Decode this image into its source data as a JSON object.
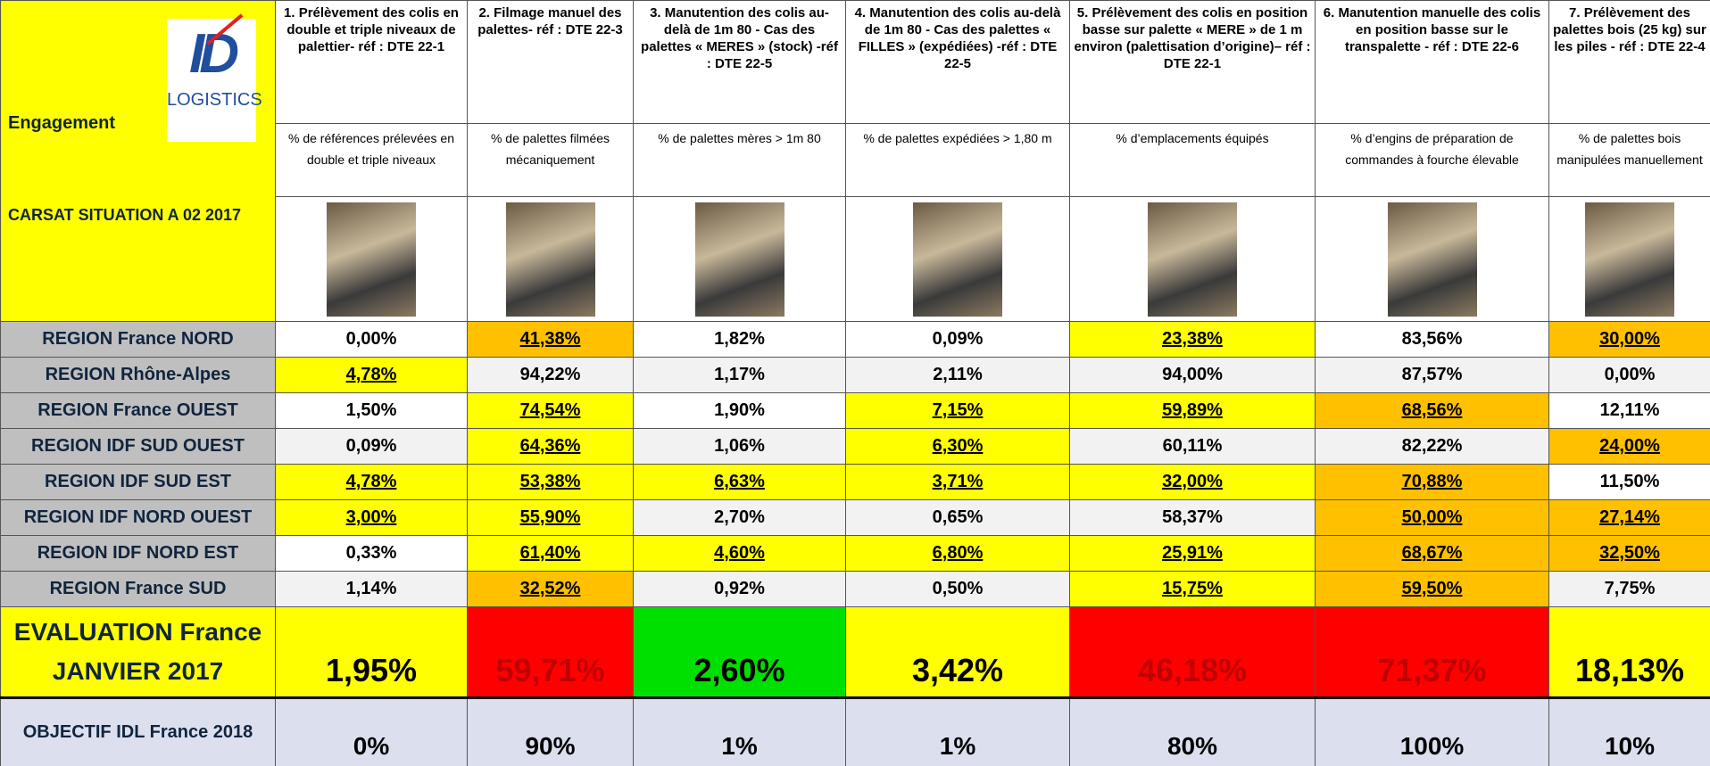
{
  "header": {
    "engagement": "Engagement",
    "logo_mark": "ID",
    "logo_text": "LOGISTICS",
    "situation": "CARSAT  SITUATION A 02 2017"
  },
  "columns": [
    {
      "title": "1. Prélèvement des colis en double et triple niveaux de palettier- réf : DTE 22-1",
      "measure": "% de références prélevées en double et triple niveaux"
    },
    {
      "title": "2. Filmage manuel des palettes- réf : DTE 22-3",
      "measure": "% de palettes filmées mécaniquement"
    },
    {
      "title": "3. Manutention des colis au-delà de 1m 80 - Cas des palettes « MERES » (stock) -réf : DTE 22-5",
      "measure": "% de palettes mères > 1m 80"
    },
    {
      "title": "4. Manutention des colis au-delà de 1m 80 - Cas des palettes « FILLES » (expédiées) -réf : DTE 22-5",
      "measure": "% de palettes expédiées > 1,80 m"
    },
    {
      "title": "5. Prélèvement des colis en position basse sur palette « MERE » de 1 m environ (palettisation d’origine)– réf : DTE 22-1",
      "measure": "% d’emplacements équipés"
    },
    {
      "title": "6. Manutention manuelle des colis en position basse sur le transpalette - réf : DTE 22-6",
      "measure": "% d’engins de préparation de commandes à fourche élevable"
    },
    {
      "title": "7. Prélèvement des palettes bois (25 kg) sur les piles - réf : DTE 22-4",
      "measure": "% de palettes bois manipulées manuellement"
    }
  ],
  "rows": [
    {
      "label": "REGION France NORD",
      "values": [
        "0,00%",
        "41,38%",
        "1,82%",
        "0,09%",
        "23,38%",
        "83,56%",
        "30,00%"
      ],
      "fills": [
        "#ffffff",
        "#ffc000",
        "#ffffff",
        "#ffffff",
        "#ffff00",
        "#ffffff",
        "#ffc000"
      ]
    },
    {
      "label": "REGION Rhône-Alpes",
      "values": [
        "4,78%",
        "94,22%",
        "1,17%",
        "2,11%",
        "94,00%",
        "87,57%",
        "0,00%"
      ],
      "fills": [
        "#ffff00",
        "#f2f2f2",
        "#f2f2f2",
        "#f2f2f2",
        "#f2f2f2",
        "#f2f2f2",
        "#f2f2f2"
      ]
    },
    {
      "label": "REGION France OUEST",
      "values": [
        "1,50%",
        "74,54%",
        "1,90%",
        "7,15%",
        "59,89%",
        "68,56%",
        "12,11%"
      ],
      "fills": [
        "#ffffff",
        "#ffff00",
        "#ffffff",
        "#ffff00",
        "#ffff00",
        "#ffc000",
        "#ffffff"
      ]
    },
    {
      "label": "REGION IDF SUD OUEST",
      "values": [
        "0,09%",
        "64,36%",
        "1,06%",
        "6,30%",
        "60,11%",
        "82,22%",
        "24,00%"
      ],
      "fills": [
        "#f2f2f2",
        "#ffff00",
        "#f2f2f2",
        "#ffff00",
        "#f2f2f2",
        "#f2f2f2",
        "#ffc000"
      ]
    },
    {
      "label": "REGION IDF SUD EST",
      "values": [
        "4,78%",
        "53,38%",
        "6,63%",
        "3,71%",
        "32,00%",
        "70,88%",
        "11,50%"
      ],
      "fills": [
        "#ffff00",
        "#ffff00",
        "#ffff00",
        "#ffff00",
        "#ffff00",
        "#ffc000",
        "#ffffff"
      ]
    },
    {
      "label": "REGION IDF NORD OUEST",
      "values": [
        "3,00%",
        "55,90%",
        "2,70%",
        "0,65%",
        "58,37%",
        "50,00%",
        "27,14%"
      ],
      "fills": [
        "#ffff00",
        "#ffff00",
        "#f2f2f2",
        "#f2f2f2",
        "#f2f2f2",
        "#ffc000",
        "#ffc000"
      ]
    },
    {
      "label": "REGION IDF NORD EST",
      "values": [
        "0,33%",
        "61,40%",
        "4,60%",
        "6,80%",
        "25,91%",
        "68,67%",
        "32,50%"
      ],
      "fills": [
        "#ffffff",
        "#ffff00",
        "#ffff00",
        "#ffff00",
        "#ffff00",
        "#ffc000",
        "#ffc000"
      ]
    },
    {
      "label": "REGION France SUD",
      "values": [
        "1,14%",
        "32,52%",
        "0,92%",
        "0,50%",
        "15,75%",
        "59,50%",
        "7,75%"
      ],
      "fills": [
        "#f2f2f2",
        "#ffc000",
        "#f2f2f2",
        "#f2f2f2",
        "#ffff00",
        "#ffc000",
        "#f2f2f2"
      ]
    }
  ],
  "evaluation": {
    "label_line1": "EVALUATION France",
    "label_line2": "JANVIER  2017",
    "values": [
      "1,95%",
      "59,71%",
      "2,60%",
      "3,42%",
      "46,18%",
      "71,37%",
      "18,13%"
    ],
    "fills": [
      "#ffff00",
      "#ff0000",
      "#00e000",
      "#ffff00",
      "#ff0000",
      "#ff0000",
      "#ffff00"
    ],
    "text_colors": [
      "#000000",
      "#c00000",
      "#000000",
      "#000000",
      "#c00000",
      "#c00000",
      "#000000"
    ]
  },
  "objective": {
    "label": "OBJECTIF IDL France 2018",
    "values": [
      "0%",
      "90%",
      "1%",
      "1%",
      "80%",
      "100%",
      "10%"
    ]
  }
}
